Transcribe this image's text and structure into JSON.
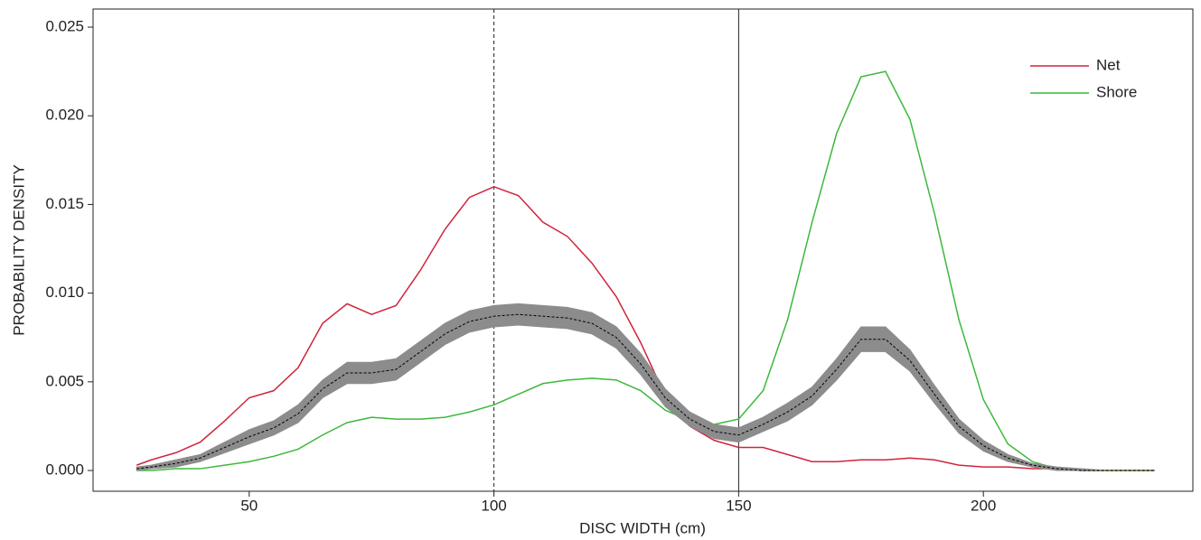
{
  "chart_data": {
    "type": "line",
    "xlabel": "DISC WIDTH (cm)",
    "ylabel": "PROBABILITY DENSITY",
    "x": [
      27,
      30,
      35,
      40,
      45,
      50,
      55,
      60,
      65,
      70,
      75,
      80,
      85,
      90,
      95,
      100,
      105,
      110,
      115,
      120,
      125,
      130,
      135,
      140,
      145,
      150,
      155,
      160,
      165,
      170,
      175,
      180,
      185,
      190,
      195,
      200,
      205,
      210,
      215,
      220,
      225,
      230,
      235
    ],
    "series": [
      {
        "name": "Net",
        "color": "#d0243c",
        "values": [
          0.0003,
          0.0006,
          0.001,
          0.0016,
          0.0028,
          0.0041,
          0.0045,
          0.0058,
          0.0083,
          0.0094,
          0.0088,
          0.0093,
          0.0113,
          0.0136,
          0.0154,
          0.016,
          0.0155,
          0.014,
          0.0132,
          0.0117,
          0.0098,
          0.0072,
          0.0042,
          0.0025,
          0.0017,
          0.0013,
          0.0013,
          0.0009,
          0.0005,
          0.0005,
          0.0006,
          0.0006,
          0.0007,
          0.0006,
          0.0003,
          0.0002,
          0.0002,
          0.0001,
          0.0001,
          0,
          0,
          0,
          0
        ]
      },
      {
        "name": "Shore",
        "color": "#3cb83c",
        "values": [
          0,
          0,
          0.0001,
          0.0001,
          0.0003,
          0.0005,
          0.0008,
          0.0012,
          0.002,
          0.0027,
          0.003,
          0.0029,
          0.0029,
          0.003,
          0.0033,
          0.0037,
          0.0043,
          0.0049,
          0.0051,
          0.0052,
          0.0051,
          0.0045,
          0.0034,
          0.0028,
          0.0026,
          0.0029,
          0.0045,
          0.0085,
          0.014,
          0.019,
          0.0222,
          0.0225,
          0.0198,
          0.0145,
          0.0085,
          0.004,
          0.0015,
          0.0005,
          0.0001,
          0,
          0,
          0,
          0
        ]
      },
      {
        "color": "#000000",
        "band_color": "#8c8c8c",
        "dashed": true,
        "values": [
          0.0001,
          0.0002,
          0.0004,
          0.0007,
          0.0013,
          0.0019,
          0.0024,
          0.0032,
          0.0046,
          0.0055,
          0.0055,
          0.0057,
          0.0067,
          0.0077,
          0.0084,
          0.0087,
          0.0088,
          0.0087,
          0.0086,
          0.0083,
          0.0075,
          0.006,
          0.0041,
          0.0029,
          0.0022,
          0.002,
          0.0026,
          0.0033,
          0.0042,
          0.0057,
          0.0074,
          0.0074,
          0.0062,
          0.0043,
          0.0025,
          0.0014,
          0.0007,
          0.0003,
          0.0001,
          0,
          0,
          0,
          0
        ],
        "lower": [
          0,
          0.0001,
          0.0002,
          0.0005,
          0.001,
          0.0015,
          0.002,
          0.0027,
          0.0041,
          0.0049,
          0.0049,
          0.0051,
          0.0061,
          0.0071,
          0.0078,
          0.0081,
          0.0082,
          0.0081,
          0.008,
          0.0077,
          0.0069,
          0.0054,
          0.0036,
          0.0025,
          0.0018,
          0.0016,
          0.0022,
          0.0028,
          0.0037,
          0.0051,
          0.0067,
          0.0067,
          0.0056,
          0.0038,
          0.0021,
          0.0011,
          0.0005,
          0.0002,
          0,
          0,
          0,
          0,
          0
        ],
        "upper": [
          0.0002,
          0.0003,
          0.0006,
          0.0009,
          0.0016,
          0.0023,
          0.0028,
          0.0037,
          0.0051,
          0.0061,
          0.0061,
          0.0063,
          0.0073,
          0.0083,
          0.009,
          0.0093,
          0.0094,
          0.0093,
          0.0092,
          0.0089,
          0.0081,
          0.0066,
          0.0046,
          0.0033,
          0.0026,
          0.0024,
          0.003,
          0.0038,
          0.0047,
          0.0063,
          0.0081,
          0.0081,
          0.0068,
          0.0048,
          0.0029,
          0.0017,
          0.0009,
          0.0004,
          0.0002,
          0.0001,
          0,
          0,
          0
        ]
      }
    ],
    "vlines": [
      {
        "x": 100,
        "style": "dashed"
      },
      {
        "x": 150,
        "style": "solid"
      }
    ],
    "xlim": [
      18.1,
      242.8
    ],
    "xticks": [
      50,
      100,
      150,
      200
    ],
    "ylim": [
      -0.00117,
      0.02602
    ],
    "yticks": [
      {
        "value": 0,
        "label": "0.000"
      },
      {
        "value": 0.005,
        "label": "0.005"
      },
      {
        "value": 0.01,
        "label": "0.010"
      },
      {
        "value": 0.015,
        "label": "0.015"
      },
      {
        "value": 0.02,
        "label": "0.020"
      },
      {
        "value": 0.025,
        "label": "0.025"
      }
    ],
    "legend": "upper right",
    "grid": false
  }
}
